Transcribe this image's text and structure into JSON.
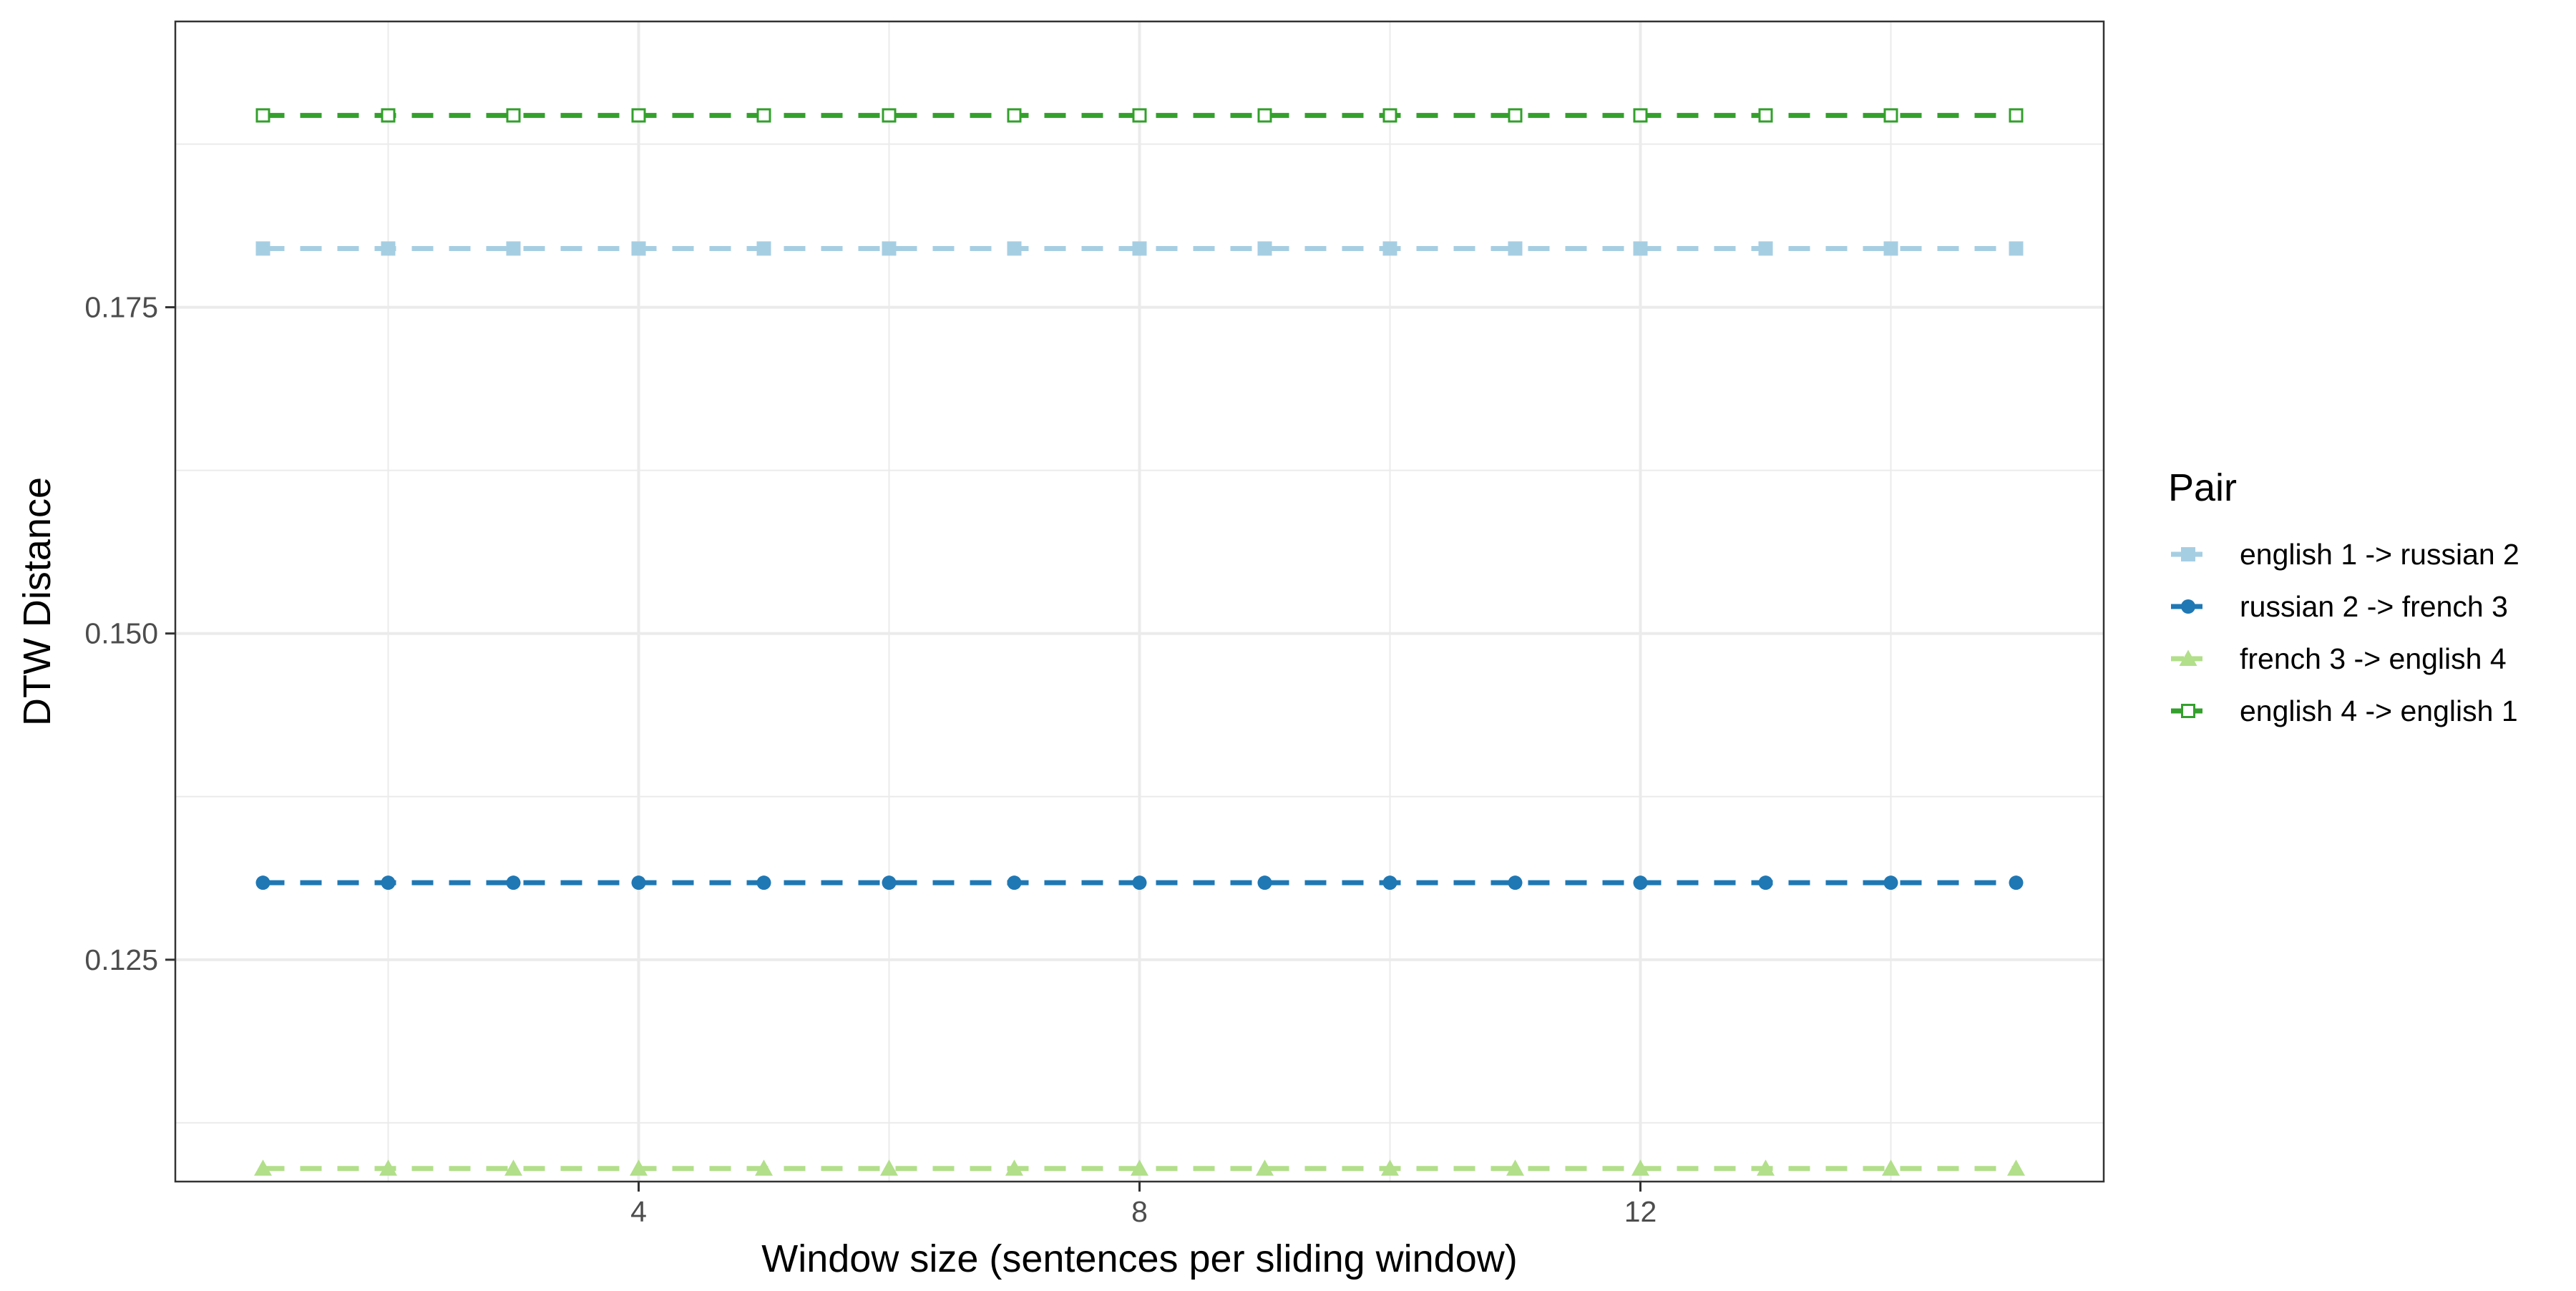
{
  "chart_data": {
    "type": "line",
    "title": "",
    "xlabel": "Window size (sentences per sliding window)",
    "ylabel": "DTW Distance",
    "xlim": [
      0.3,
      15.7
    ],
    "ylim": [
      0.108,
      0.1969
    ],
    "x_ticks": [
      4,
      8,
      12
    ],
    "x_tick_labels": [
      "4",
      "8",
      "12"
    ],
    "y_ticks": [
      0.125,
      0.15,
      0.175
    ],
    "y_tick_labels": [
      "0.125",
      "0.150",
      "0.175"
    ],
    "x": [
      1,
      2,
      3,
      4,
      5,
      6,
      7,
      8,
      9,
      10,
      11,
      12,
      13,
      14,
      15
    ],
    "grid": true,
    "line_style": "dashed",
    "legend": {
      "title": "Pair",
      "position": "right"
    },
    "series": [
      {
        "name": "english 1 -> russian 2",
        "color": "#a6cee3",
        "marker": "square-filled",
        "values": [
          0.1795,
          0.1795,
          0.1795,
          0.1795,
          0.1795,
          0.1795,
          0.1795,
          0.1795,
          0.1795,
          0.1795,
          0.1795,
          0.1795,
          0.1795,
          0.1795,
          0.1795
        ]
      },
      {
        "name": "russian 2 -> french 3",
        "color": "#1f78b4",
        "marker": "circle-filled",
        "values": [
          0.1309,
          0.1309,
          0.1309,
          0.1309,
          0.1309,
          0.1309,
          0.1309,
          0.1309,
          0.1309,
          0.1309,
          0.1309,
          0.1309,
          0.1309,
          0.1309,
          0.1309
        ]
      },
      {
        "name": "french 3 -> english 4",
        "color": "#b2df8a",
        "marker": "triangle-filled",
        "values": [
          0.109,
          0.109,
          0.109,
          0.109,
          0.109,
          0.109,
          0.109,
          0.109,
          0.109,
          0.109,
          0.109,
          0.109,
          0.109,
          0.109,
          0.109
        ]
      },
      {
        "name": "english 4 -> english 1",
        "color": "#33a02c",
        "marker": "square-open",
        "values": [
          0.1897,
          0.1897,
          0.1897,
          0.1897,
          0.1897,
          0.1897,
          0.1897,
          0.1897,
          0.1897,
          0.1897,
          0.1897,
          0.1897,
          0.1897,
          0.1897,
          0.1897
        ]
      }
    ]
  }
}
